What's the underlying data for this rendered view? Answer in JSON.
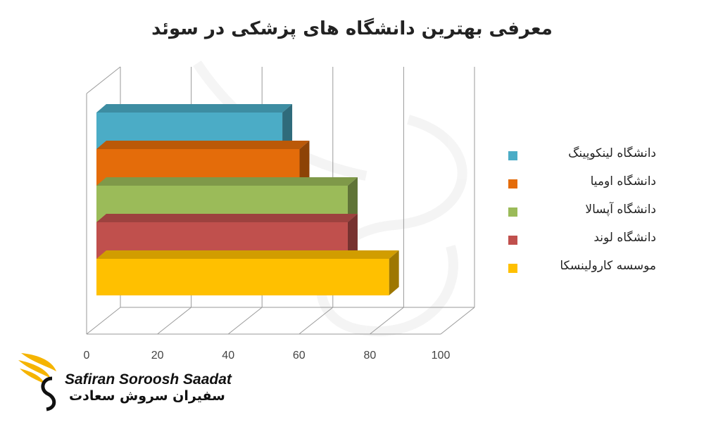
{
  "chart_data": {
    "type": "bar",
    "orientation": "horizontal",
    "style": "3d",
    "title": "معرفی بهترین دانشگاه های پزشکی در سوئد",
    "categories": [
      "دانشگاه لینکوپینگ",
      "دانشگاه اومیا",
      "دانشگاه آپسالا",
      "دانشگاه لوند",
      "موسسه کارولینسکا"
    ],
    "values": [
      54,
      59,
      73,
      73,
      85
    ],
    "colors": [
      "#4BACC6",
      "#E46C0A",
      "#9BBB59",
      "#C0504D",
      "#FFC000"
    ],
    "xlim": [
      0,
      100
    ],
    "x_ticks": [
      "0",
      "20",
      "40",
      "60",
      "80",
      "100"
    ],
    "grid": true,
    "legend_position": "right"
  },
  "legend": {
    "items": [
      {
        "label": "دانشگاه لینکوپینگ",
        "color": "#4BACC6"
      },
      {
        "label": "دانشگاه اومیا",
        "color": "#E46C0A"
      },
      {
        "label": "دانشگاه آپسالا",
        "color": "#9BBB59"
      },
      {
        "label": "دانشگاه لوند",
        "color": "#C0504D"
      },
      {
        "label": "موسسه کارولینسکا",
        "color": "#FFC000"
      }
    ]
  },
  "logo": {
    "name_en": "Safiran Soroosh Saadat",
    "name_fa": "سفیران سروش سعادت",
    "color": "#F5B400"
  }
}
